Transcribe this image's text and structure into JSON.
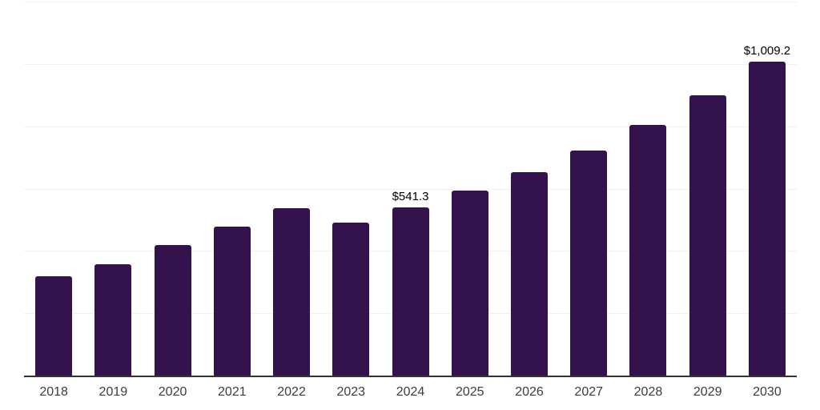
{
  "chart_data": {
    "type": "bar",
    "categories": [
      "2018",
      "2019",
      "2020",
      "2021",
      "2022",
      "2023",
      "2024",
      "2025",
      "2026",
      "2027",
      "2028",
      "2029",
      "2030"
    ],
    "values": [
      321.2,
      359.7,
      422.7,
      479.7,
      539.6,
      494.1,
      541.3,
      596.9,
      655.2,
      723.8,
      806.9,
      902.7,
      1009.2
    ],
    "data_labels": [
      "",
      "",
      "",
      "",
      "",
      "",
      "$541.3",
      "",
      "",
      "",
      "",
      "",
      "$1,009.2"
    ],
    "title": "",
    "xlabel": "",
    "ylabel": "",
    "ylim": [
      0,
      1200
    ],
    "grid_step": 200,
    "grid": "horizontal",
    "legend": "none",
    "y_axis_tick_labels_visible": false,
    "colors": {
      "bar": "#33124E",
      "gridline": "#F0F0F0",
      "axis_line": "#333333",
      "tick_label": "#3C3C3C",
      "data_label": "#000000",
      "background": "#FFFFFF"
    }
  }
}
